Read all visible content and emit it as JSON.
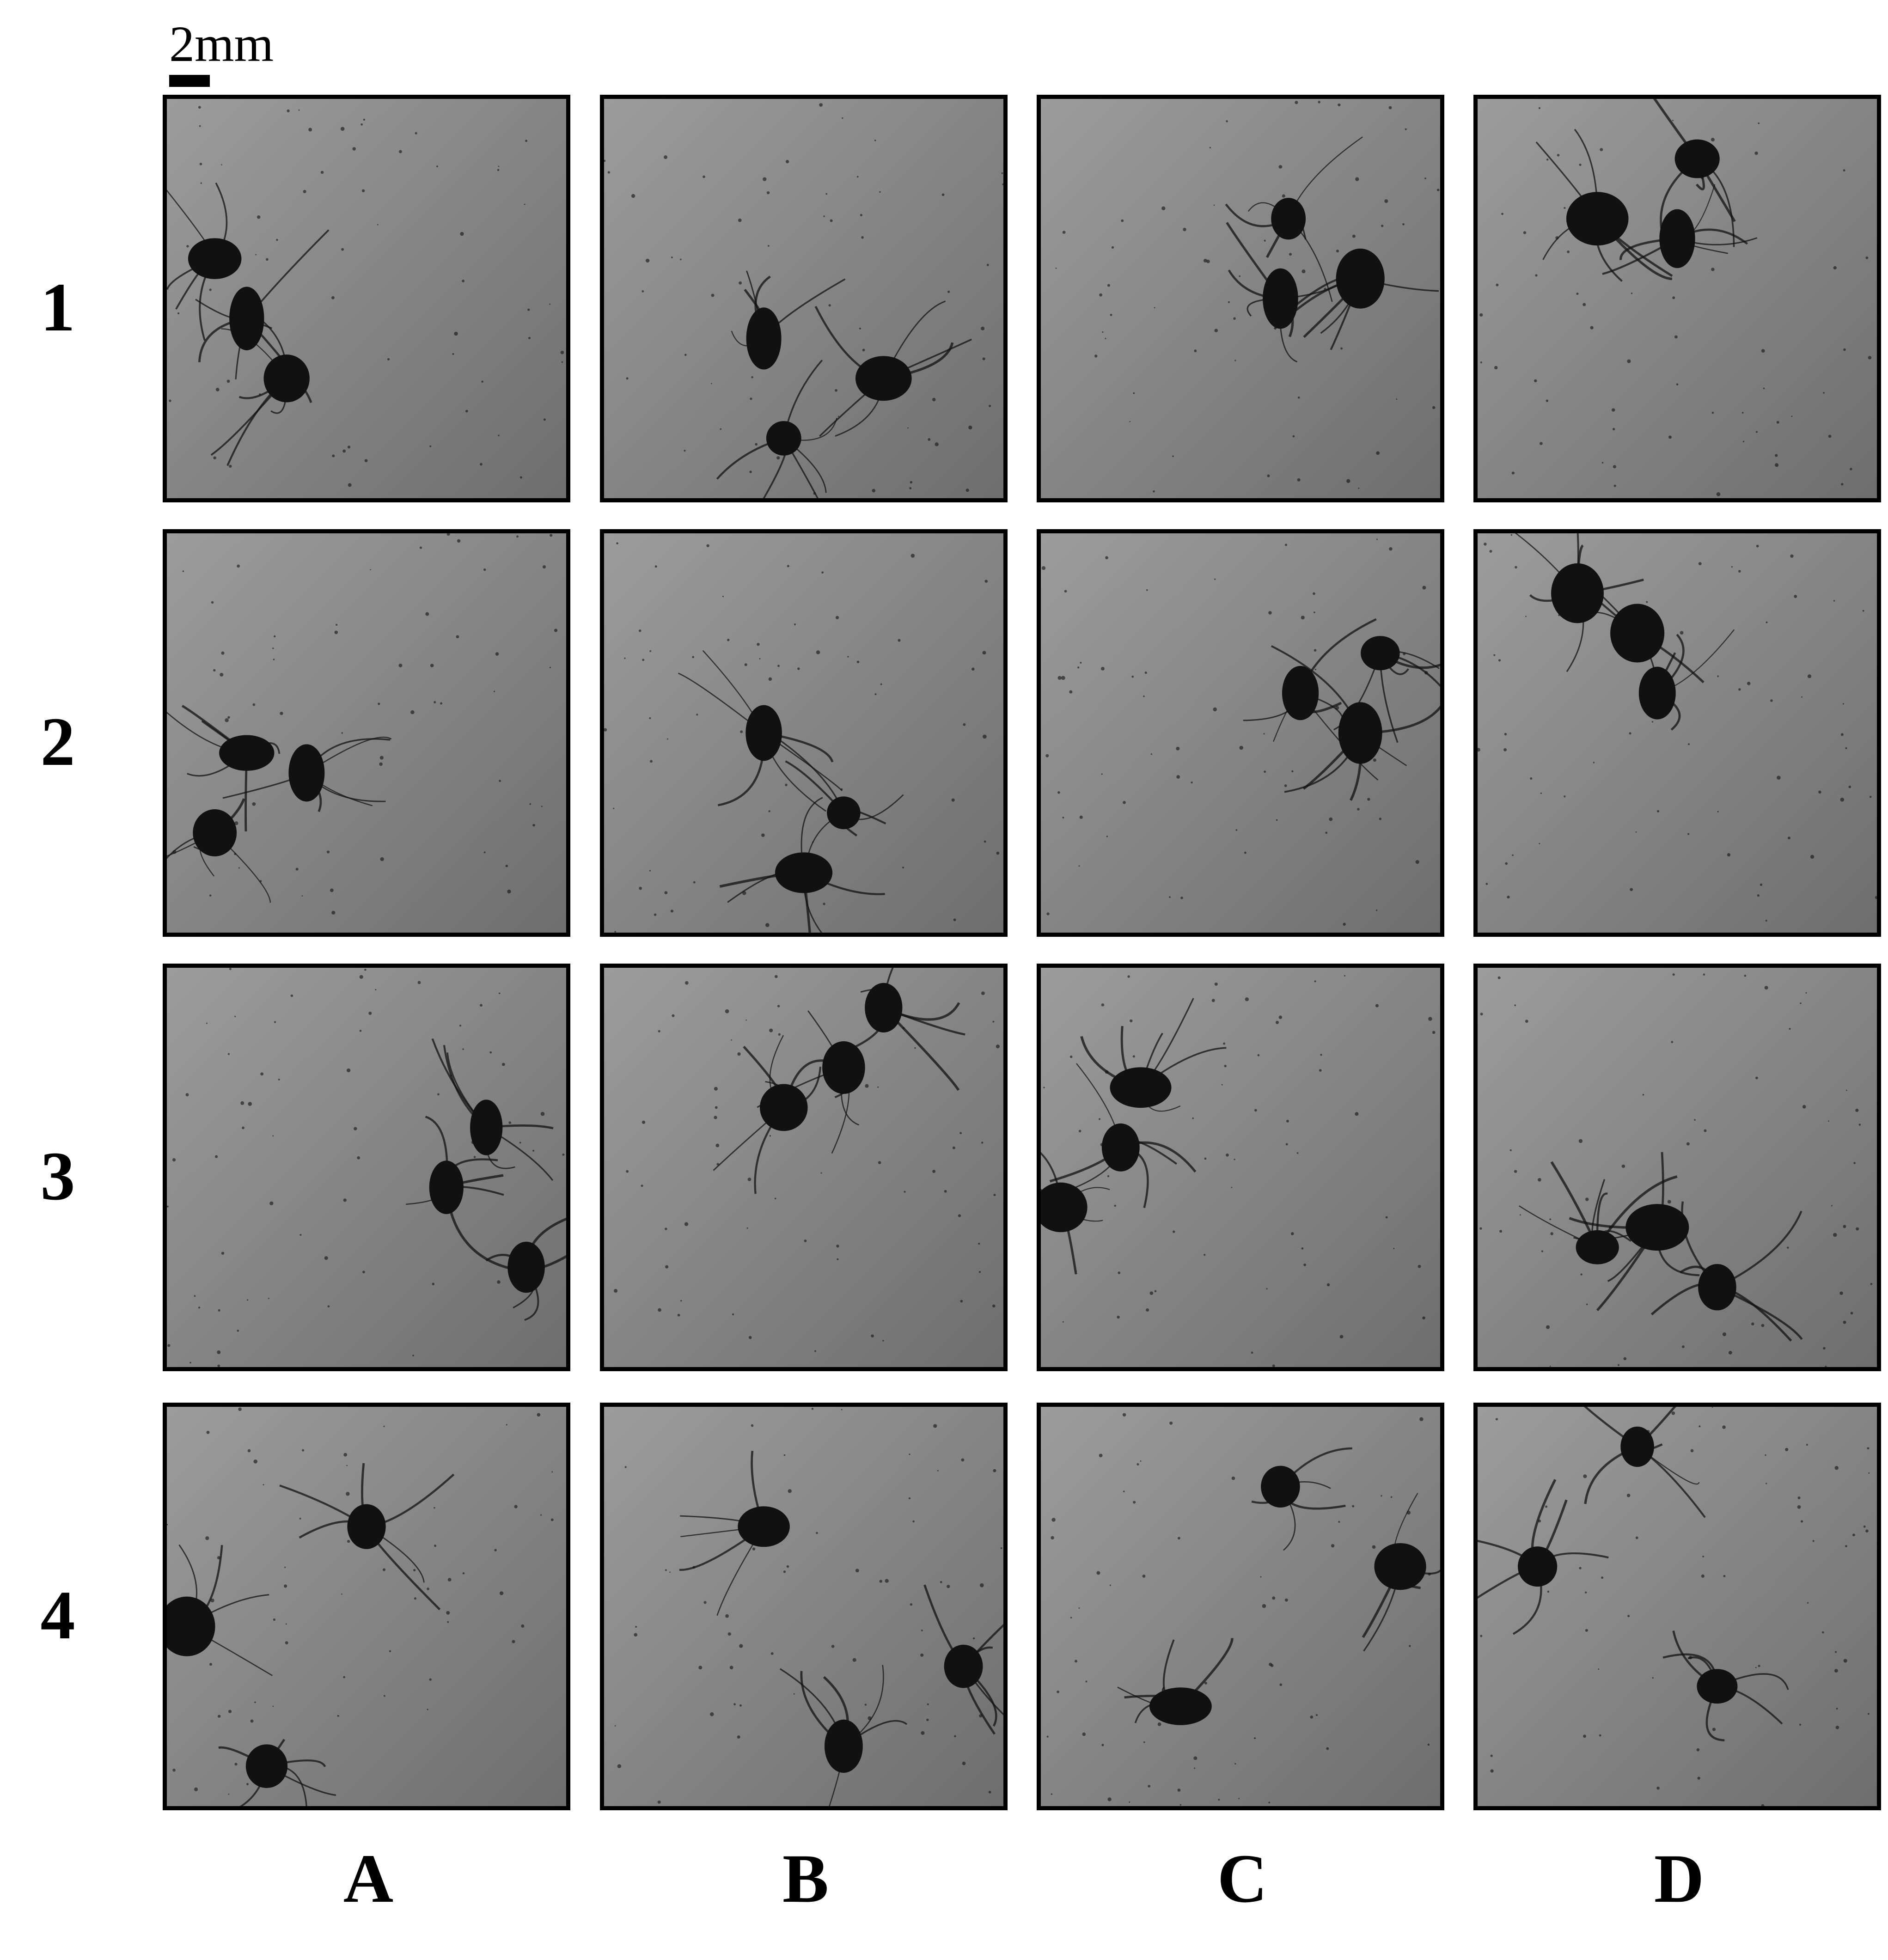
{
  "figure": {
    "scale_bar_label": "2mm",
    "row_labels": [
      "1",
      "2",
      "3",
      "4"
    ],
    "column_labels": [
      "A",
      "B",
      "C",
      "D"
    ],
    "panels": [
      {
        "row": "1",
        "column": "A",
        "description": "microscopy-panel"
      },
      {
        "row": "1",
        "column": "B",
        "description": "microscopy-panel"
      },
      {
        "row": "1",
        "column": "C",
        "description": "microscopy-panel"
      },
      {
        "row": "1",
        "column": "D",
        "description": "microscopy-panel"
      },
      {
        "row": "2",
        "column": "A",
        "description": "microscopy-panel"
      },
      {
        "row": "2",
        "column": "B",
        "description": "microscopy-panel"
      },
      {
        "row": "2",
        "column": "C",
        "description": "microscopy-panel"
      },
      {
        "row": "2",
        "column": "D",
        "description": "microscopy-panel"
      },
      {
        "row": "3",
        "column": "A",
        "description": "microscopy-panel"
      },
      {
        "row": "3",
        "column": "B",
        "description": "microscopy-panel"
      },
      {
        "row": "3",
        "column": "C",
        "description": "microscopy-panel"
      },
      {
        "row": "3",
        "column": "D",
        "description": "microscopy-panel"
      },
      {
        "row": "4",
        "column": "A",
        "description": "microscopy-panel"
      },
      {
        "row": "4",
        "column": "B",
        "description": "microscopy-panel"
      },
      {
        "row": "4",
        "column": "C",
        "description": "microscopy-panel"
      },
      {
        "row": "4",
        "column": "D",
        "description": "microscopy-panel"
      }
    ],
    "colors": {
      "background": "#ffffff",
      "frame": "#000000",
      "panel_gray_light": "#9c9c9c",
      "panel_gray_dark": "#6e6e6e",
      "growth": "#111111"
    }
  }
}
